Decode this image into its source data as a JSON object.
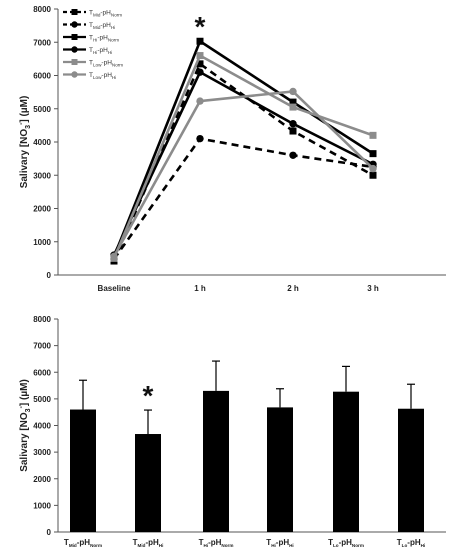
{
  "chart_data": [
    {
      "type": "line",
      "ylabel": {
        "base": "Salivary [NO",
        "sub": "3",
        "sup": "-",
        "tail": "] (µM)"
      },
      "ylim": [
        0,
        8000
      ],
      "yticks": [
        0,
        1000,
        2000,
        3000,
        4000,
        5000,
        6000,
        7000,
        8000
      ],
      "categories": [
        "Baseline",
        "1 h",
        "2 h",
        "3 h"
      ],
      "legend_position": "top-left",
      "annotations": [
        {
          "text": "*",
          "category": "1 h"
        }
      ],
      "series": [
        {
          "name": {
            "base": "T",
            "sub": "Mid",
            "sep": "-pH",
            "sub2": "Norm"
          },
          "color": "#000000",
          "dash": true,
          "marker": "square",
          "values": [
            420,
            6350,
            4330,
            3000
          ]
        },
        {
          "name": {
            "base": "T",
            "sub": "Mid",
            "sep": "-pH",
            "sub2": "Hi"
          },
          "color": "#000000",
          "dash": true,
          "marker": "circle",
          "values": [
            480,
            4100,
            3600,
            3250
          ]
        },
        {
          "name": {
            "base": "T",
            "sub": "Hi",
            "sep": "-pH",
            "sub2": "Norm"
          },
          "color": "#000000",
          "dash": false,
          "marker": "square",
          "values": [
            550,
            7030,
            5200,
            3650
          ]
        },
        {
          "name": {
            "base": "T",
            "sub": "Hi",
            "sep": "-pH",
            "sub2": "Hi"
          },
          "color": "#000000",
          "dash": false,
          "marker": "circle",
          "values": [
            600,
            6100,
            4550,
            3330
          ]
        },
        {
          "name": {
            "base": "T",
            "sub": "Low",
            "sep": "-pH",
            "sub2": "Norm"
          },
          "color": "#8c8c8c",
          "dash": false,
          "marker": "square",
          "values": [
            500,
            6600,
            5050,
            4200
          ]
        },
        {
          "name": {
            "base": "T",
            "sub": "Low",
            "sep": "-pH",
            "sub2": "Hi"
          },
          "color": "#8c8c8c",
          "dash": false,
          "marker": "circle",
          "values": [
            560,
            5230,
            5520,
            3200
          ]
        }
      ]
    },
    {
      "type": "bar",
      "ylabel": {
        "base": "Salivary [NO",
        "sub": "3",
        "sup": "-",
        "tail": "] (µM)"
      },
      "ylim": [
        0,
        8000
      ],
      "yticks": [
        0,
        1000,
        2000,
        3000,
        4000,
        5000,
        6000,
        7000,
        8000
      ],
      "categories": [
        {
          "base": "T",
          "sub": "Mid",
          "sep": "-pH",
          "sub2": "Norm"
        },
        {
          "base": "T",
          "sub": "Mid",
          "sep": "-pH",
          "sub2": "Hi"
        },
        {
          "base": "T",
          "sub": "Hi",
          "sep": "-pH",
          "sub2": "Norm"
        },
        {
          "base": "T",
          "sub": "Hi",
          "sep": "-pH",
          "sub2": "Hi"
        },
        {
          "base": "T",
          "sub": "Lo",
          "sep": "-pH",
          "sub2": "Norm"
        },
        {
          "base": "T",
          "sub": "Lo",
          "sep": "-pH",
          "sub2": "Hi"
        }
      ],
      "values": [
        4600,
        3680,
        5300,
        4680,
        5270,
        4630
      ],
      "errors": [
        1100,
        900,
        1120,
        700,
        950,
        920
      ],
      "bar_color": "#000000",
      "annotations": [
        {
          "text": "*",
          "category_index": 1
        }
      ]
    }
  ]
}
